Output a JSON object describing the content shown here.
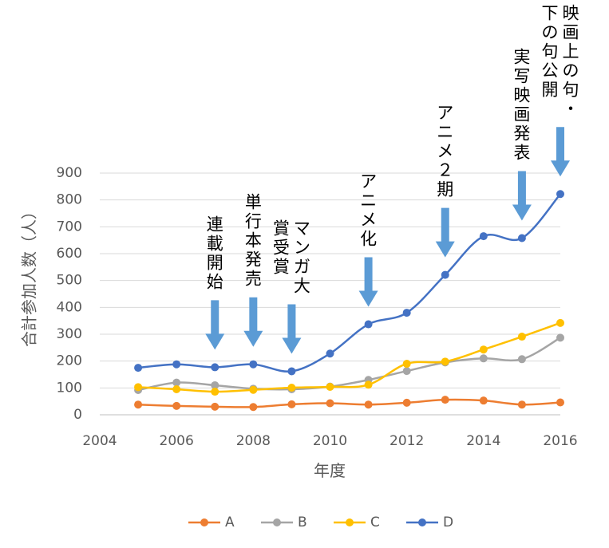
{
  "chart_data": {
    "type": "line",
    "xlabel": "年度",
    "ylabel": "合計参加人数（人）",
    "xlim": [
      2004,
      2016
    ],
    "ylim": [
      0,
      900
    ],
    "xticks": [
      "2004",
      "2006",
      "2008",
      "2010",
      "2012",
      "2014",
      "2016"
    ],
    "yticks": [
      "0",
      "100",
      "200",
      "300",
      "400",
      "500",
      "600",
      "700",
      "800",
      "900"
    ],
    "grid": true,
    "legend_position": "bottom",
    "x": [
      2005,
      2006,
      2007,
      2008,
      2009,
      2010,
      2011,
      2012,
      2013,
      2014,
      2015,
      2016
    ],
    "series": [
      {
        "name": "A",
        "color": "#ED7D31",
        "values": [
          38,
          33,
          30,
          29,
          39,
          43,
          38,
          45,
          56,
          53,
          38,
          46
        ]
      },
      {
        "name": "B",
        "color": "#A5A5A5",
        "values": [
          92,
          120,
          110,
          97,
          95,
          105,
          130,
          163,
          195,
          210,
          207,
          287
        ]
      },
      {
        "name": "C",
        "color": "#FFC000",
        "values": [
          103,
          95,
          86,
          93,
          101,
          104,
          112,
          190,
          198,
          243,
          291,
          342
        ]
      },
      {
        "name": "D",
        "color": "#4472C4",
        "values": [
          175,
          188,
          177,
          188,
          162,
          228,
          337,
          380,
          521,
          665,
          658,
          822
        ]
      }
    ],
    "annotations": [
      {
        "x": 2007,
        "text": "連載開始"
      },
      {
        "x": 2008,
        "text": "単行本発売"
      },
      {
        "x": 2009,
        "text": "マンガ大賞受賞"
      },
      {
        "x": 2011,
        "text": "アニメ化"
      },
      {
        "x": 2013,
        "text": "アニメ２期"
      },
      {
        "x": 2015,
        "text": "実写映画発表"
      },
      {
        "x": 2016,
        "text": "映画上の句・下の句公開"
      }
    ],
    "arrow_color": "#5B9BD5"
  }
}
